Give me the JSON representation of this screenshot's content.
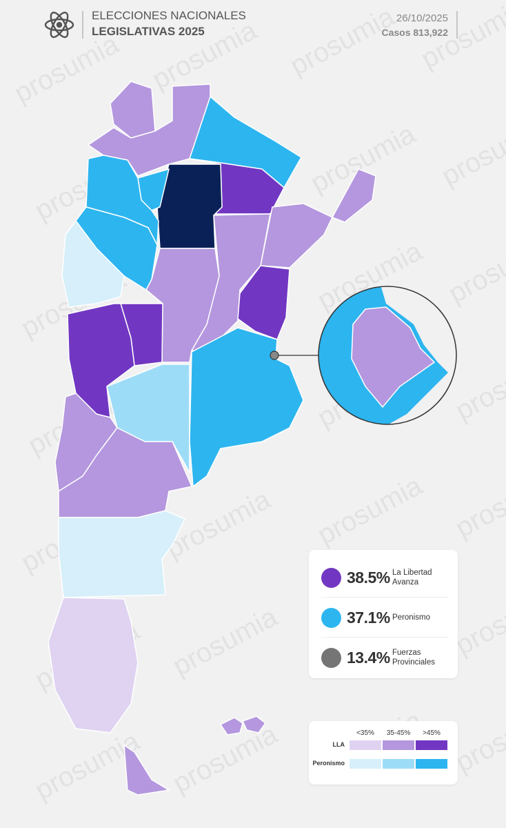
{
  "header": {
    "title": "ELECCIONES NACIONALES",
    "subtitle": "LEGISLATIVAS 2025",
    "date": "26/10/2025",
    "cases": "Casos 813,922"
  },
  "results": [
    {
      "percent": "38.5%",
      "name": "La Libertad Avanza",
      "color": "#7137c2"
    },
    {
      "percent": "37.1%",
      "name": "Peronismo",
      "color": "#2db5ef"
    },
    {
      "percent": "13.4%",
      "name": "Fuerzas Provinciales",
      "color": "#757575"
    }
  ],
  "scale": {
    "labels": [
      "<35%",
      "35-45%",
      ">45%"
    ],
    "rows": [
      {
        "name": "LLA",
        "colors": [
          "#dfd3f1",
          "#b497de",
          "#7137c2"
        ]
      },
      {
        "name": "Peronismo",
        "colors": [
          "#d6effa",
          "#9ddcf7",
          "#2db5ef"
        ]
      }
    ]
  },
  "watermark": "prosumia"
}
